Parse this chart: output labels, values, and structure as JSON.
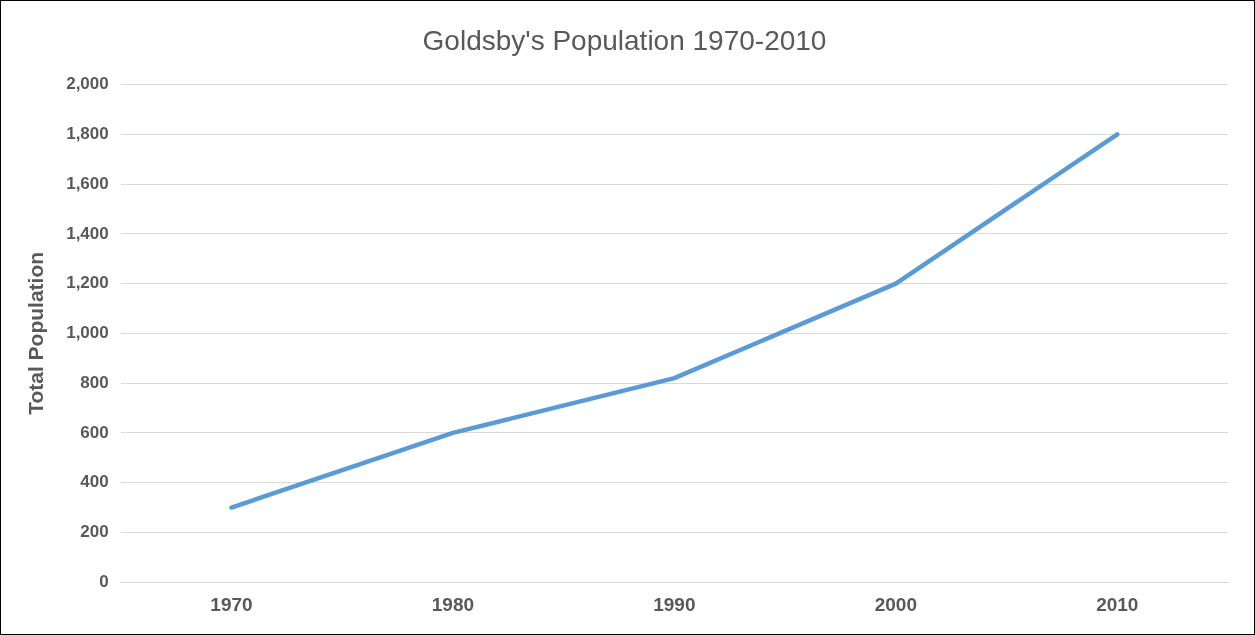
{
  "chart_data": {
    "type": "line",
    "title": "Goldsby's Population 1970-2010",
    "ylabel": "Total Population",
    "categories": [
      "1970",
      "1980",
      "1990",
      "2000",
      "2010"
    ],
    "series": [
      {
        "color": "#5b9bd5",
        "values": [
          300,
          600,
          820,
          1200,
          1800
        ]
      }
    ],
    "ylim": [
      0,
      2000
    ],
    "yticks": [
      {
        "value": 0,
        "label": "0"
      },
      {
        "value": 200,
        "label": "200"
      },
      {
        "value": 400,
        "label": "400"
      },
      {
        "value": 600,
        "label": "600"
      },
      {
        "value": 800,
        "label": "800"
      },
      {
        "value": 1000,
        "label": "1,000"
      },
      {
        "value": 1200,
        "label": "1,200"
      },
      {
        "value": 1400,
        "label": "1,400"
      },
      {
        "value": 1600,
        "label": "1,600"
      },
      {
        "value": 1800,
        "label": "1,800"
      },
      {
        "value": 2000,
        "label": "2,000"
      }
    ],
    "grid": "y",
    "legend": false,
    "marker": "none",
    "line_style": "solid"
  }
}
